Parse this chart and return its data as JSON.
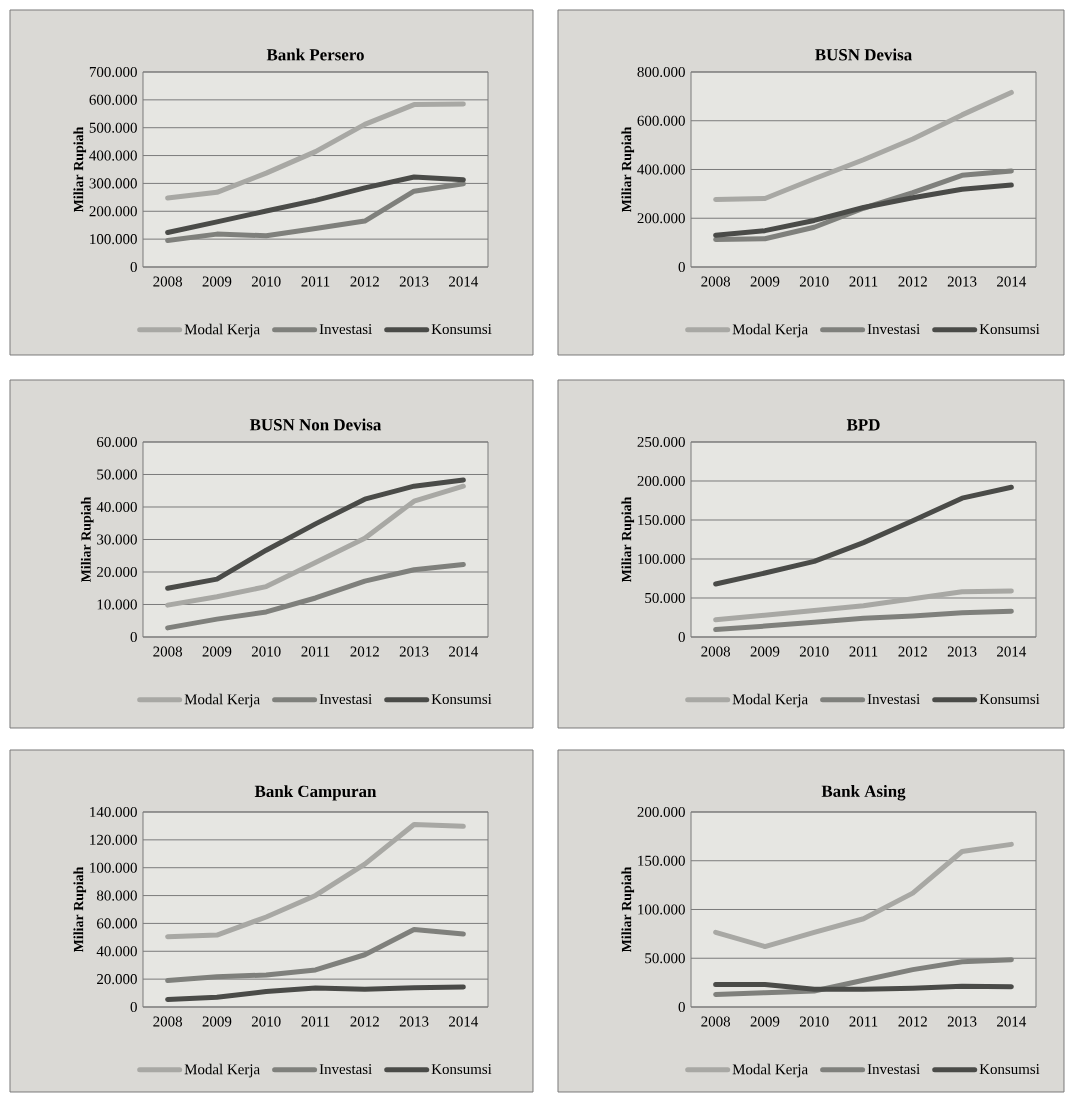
{
  "chart_data": [
    {
      "type": "line",
      "title": "Bank Persero",
      "ylabel": "Miliar Rupiah",
      "categories": [
        "2008",
        "2009",
        "2010",
        "2011",
        "2012",
        "2013",
        "2014"
      ],
      "series": [
        {
          "name": "Modal Kerja",
          "color": "#a8a8a4",
          "values": [
            248000,
            268000,
            337000,
            414000,
            512000,
            583000,
            585000
          ]
        },
        {
          "name": "Investasi",
          "color": "#7f807c",
          "values": [
            95000,
            118000,
            112000,
            138000,
            165000,
            272000,
            299000
          ]
        },
        {
          "name": "Konsumsi",
          "color": "#4a4b48",
          "values": [
            124000,
            162000,
            201000,
            239000,
            284000,
            323000,
            313000
          ]
        }
      ],
      "ylim": [
        0,
        700000
      ],
      "yticks": [
        0,
        {
          "value": 100000,
          "label": "100.000"
        },
        {
          "value": 200000,
          "label": "200.000"
        },
        {
          "value": 300000,
          "label": "300.000"
        },
        {
          "value": 400000,
          "label": "400.000"
        },
        {
          "value": 500000,
          "label": "500.000"
        },
        {
          "value": 600000,
          "label": "600.000"
        },
        {
          "value": 700000,
          "label": "700.000"
        }
      ],
      "grid": "y",
      "legend": "bottom",
      "marker": "none",
      "line_style": "solid"
    },
    {
      "type": "line",
      "title": "BUSN Devisa",
      "ylabel": "Miliar Rupiah",
      "categories": [
        "2008",
        "2009",
        "2010",
        "2011",
        "2012",
        "2013",
        "2014"
      ],
      "series": [
        {
          "name": "Modal Kerja",
          "color": "#a8a8a4",
          "values": [
            277000,
            281000,
            362000,
            440000,
            525000,
            624000,
            716000
          ]
        },
        {
          "name": "Investasi",
          "color": "#7f807c",
          "values": [
            113000,
            116000,
            163000,
            241000,
            305000,
            376000,
            394000
          ]
        },
        {
          "name": "Konsumsi",
          "color": "#4a4b48",
          "values": [
            130000,
            149000,
            191000,
            244000,
            284000,
            319000,
            336000
          ]
        }
      ],
      "ylim": [
        0,
        800000
      ],
      "yticks": [
        0,
        {
          "value": 200000,
          "label": "200.000"
        },
        {
          "value": 400000,
          "label": "400.000"
        },
        {
          "value": 600000,
          "label": "600.000"
        },
        {
          "value": 800000,
          "label": "800.000"
        }
      ],
      "grid": "y",
      "legend": "bottom",
      "marker": "none",
      "line_style": "solid"
    },
    {
      "type": "line",
      "title": "BUSN Non Devisa",
      "ylabel": "Miliar Rupiah",
      "categories": [
        "2008",
        "2009",
        "2010",
        "2011",
        "2012",
        "2013",
        "2014"
      ],
      "series": [
        {
          "name": "Modal Kerja",
          "color": "#a8a8a4",
          "values": [
            9800,
            12400,
            15500,
            22900,
            30400,
            41800,
            46400
          ]
        },
        {
          "name": "Investasi",
          "color": "#7f807c",
          "values": [
            2800,
            5500,
            7700,
            12000,
            17200,
            20700,
            22300
          ]
        },
        {
          "name": "Konsumsi",
          "color": "#4a4b48",
          "values": [
            15000,
            17800,
            26700,
            34800,
            42400,
            46400,
            48300
          ]
        }
      ],
      "ylim": [
        0,
        60000
      ],
      "yticks": [
        0,
        {
          "value": 10000,
          "label": "10.000"
        },
        {
          "value": 20000,
          "label": "20.000"
        },
        {
          "value": 30000,
          "label": "30.000"
        },
        {
          "value": 40000,
          "label": "40.000"
        },
        {
          "value": 50000,
          "label": "50.000"
        },
        {
          "value": 60000,
          "label": "60.000"
        }
      ],
      "grid": "y",
      "legend": "bottom",
      "marker": "none",
      "line_style": "solid"
    },
    {
      "type": "line",
      "title": "BPD",
      "ylabel": "Miliar Rupiah",
      "categories": [
        "2008",
        "2009",
        "2010",
        "2011",
        "2012",
        "2013",
        "2014"
      ],
      "series": [
        {
          "name": "Modal Kerja",
          "color": "#a8a8a4",
          "values": [
            22000,
            28000,
            34000,
            40000,
            49000,
            58000,
            59000
          ]
        },
        {
          "name": "Investasi",
          "color": "#7f807c",
          "values": [
            9500,
            14000,
            19000,
            24000,
            27000,
            31000,
            33000
          ]
        },
        {
          "name": "Konsumsi",
          "color": "#4a4b48",
          "values": [
            68000,
            82000,
            97000,
            121000,
            149000,
            178000,
            192000
          ]
        }
      ],
      "ylim": [
        0,
        250000
      ],
      "yticks": [
        0,
        {
          "value": 50000,
          "label": "50.000"
        },
        {
          "value": 100000,
          "label": "100.000"
        },
        {
          "value": 150000,
          "label": "150.000"
        },
        {
          "value": 200000,
          "label": "200.000"
        },
        {
          "value": 250000,
          "label": "250.000"
        }
      ],
      "grid": "y",
      "legend": "bottom",
      "marker": "none",
      "line_style": "solid"
    },
    {
      "type": "line",
      "title": "Bank Campuran",
      "ylabel": "Miliar Rupiah",
      "categories": [
        "2008",
        "2009",
        "2010",
        "2011",
        "2012",
        "2013",
        "2014"
      ],
      "series": [
        {
          "name": "Modal Kerja",
          "color": "#a8a8a4",
          "values": [
            50500,
            51600,
            64600,
            80100,
            102600,
            131000,
            129700
          ]
        },
        {
          "name": "Investasi",
          "color": "#7f807c",
          "values": [
            19000,
            21700,
            23000,
            26600,
            37500,
            55600,
            52400
          ]
        },
        {
          "name": "Konsumsi",
          "color": "#4a4b48",
          "values": [
            5400,
            7000,
            11100,
            13600,
            12800,
            13800,
            14400
          ]
        }
      ],
      "ylim": [
        0,
        140000
      ],
      "yticks": [
        0,
        {
          "value": 20000,
          "label": "20.000"
        },
        {
          "value": 40000,
          "label": "40.000"
        },
        {
          "value": 60000,
          "label": "60.000"
        },
        {
          "value": 80000,
          "label": "80.000"
        },
        {
          "value": 100000,
          "label": "100.000"
        },
        {
          "value": 120000,
          "label": "120.000"
        },
        {
          "value": 140000,
          "label": "140.000"
        }
      ],
      "grid": "y",
      "legend": "bottom",
      "marker": "none",
      "line_style": "solid"
    },
    {
      "type": "line",
      "title": "Bank Asing",
      "ylabel": "Miliar Rupiah",
      "categories": [
        "2008",
        "2009",
        "2010",
        "2011",
        "2012",
        "2013",
        "2014"
      ],
      "series": [
        {
          "name": "Modal Kerja",
          "color": "#a8a8a4",
          "values": [
            76600,
            62000,
            76600,
            90500,
            116800,
            159500,
            166800
          ]
        },
        {
          "name": "Investasi",
          "color": "#7f807c",
          "values": [
            12800,
            14600,
            16400,
            27400,
            38300,
            46400,
            48500
          ]
        },
        {
          "name": "Konsumsi",
          "color": "#4a4b48",
          "values": [
            23000,
            23000,
            18200,
            18200,
            19300,
            21200,
            20800
          ]
        }
      ],
      "ylim": [
        0,
        200000
      ],
      "yticks": [
        0,
        {
          "value": 50000,
          "label": "50.000"
        },
        {
          "value": 100000,
          "label": "100.000"
        },
        {
          "value": 150000,
          "label": "150.000"
        },
        {
          "value": 200000,
          "label": "200.000"
        }
      ],
      "grid": "y",
      "legend": "bottom",
      "marker": "none",
      "line_style": "solid"
    }
  ]
}
